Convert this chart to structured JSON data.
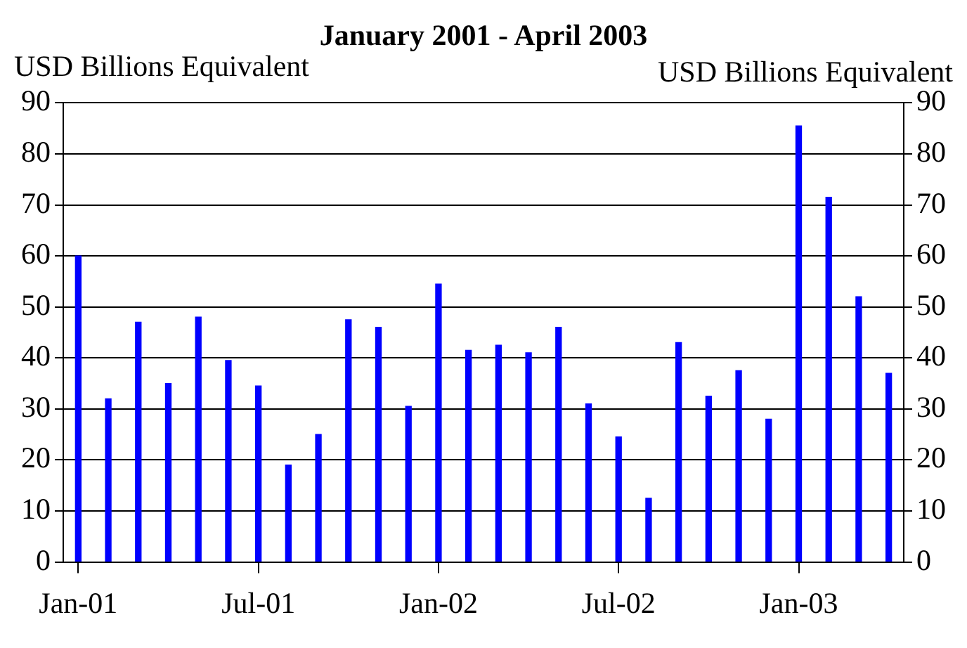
{
  "chart_data": {
    "type": "bar",
    "title": "January 2001 - April 2003",
    "ylabel": "USD Billions Equivalent",
    "y2label": "USD Billions Equivalent",
    "categories": [
      "Jan-01",
      null,
      null,
      null,
      null,
      null,
      "Jul-01",
      null,
      null,
      null,
      null,
      null,
      "Jan-02",
      null,
      null,
      null,
      null,
      null,
      "Jul-02",
      null,
      null,
      null,
      null,
      null,
      "Jan-03",
      null,
      null,
      null
    ],
    "values": [
      60,
      32,
      47,
      35,
      48,
      39.5,
      34.5,
      19,
      25,
      47.5,
      46,
      30.5,
      54.5,
      41.5,
      42.5,
      41,
      46,
      31,
      24.5,
      12.5,
      43,
      32.5,
      37.5,
      28,
      85.5,
      71.5,
      52,
      37
    ],
    "color": "#0000ff",
    "ylim": [
      0,
      90
    ],
    "yticks": [
      0,
      10,
      20,
      30,
      40,
      50,
      60,
      70,
      80,
      90
    ],
    "y2lim": [
      0,
      90
    ],
    "y2ticks": [
      0,
      10,
      20,
      30,
      40,
      50,
      60,
      70,
      80,
      90
    ],
    "grid": "y"
  }
}
